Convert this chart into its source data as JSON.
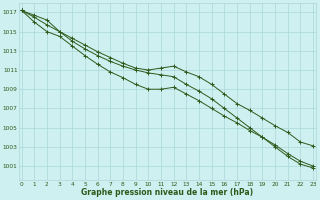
{
  "title": "Graphe pression niveau de la mer (hPa)",
  "background_color": "#cff0f0",
  "grid_color": "#aad8d8",
  "line_color": "#2d5a1b",
  "x_values": [
    0,
    1,
    2,
    3,
    4,
    5,
    6,
    7,
    8,
    9,
    10,
    11,
    12,
    13,
    14,
    15,
    16,
    17,
    18,
    19,
    20,
    21,
    22,
    23
  ],
  "series1": [
    1017.2,
    1016.7,
    1016.2,
    1015.0,
    1014.3,
    1013.6,
    1012.9,
    1012.3,
    1011.7,
    1011.2,
    1011.0,
    1011.2,
    1011.4,
    1010.8,
    1010.3,
    1009.5,
    1008.5,
    1007.5,
    1006.8,
    1006.0,
    1005.2,
    1004.5,
    1003.5,
    1003.1
  ],
  "series2": [
    1017.2,
    1016.5,
    1015.7,
    1015.0,
    1014.0,
    1013.2,
    1012.5,
    1011.9,
    1011.4,
    1011.0,
    1010.7,
    1010.5,
    1010.3,
    1009.5,
    1008.8,
    1008.0,
    1007.0,
    1006.0,
    1005.0,
    1004.0,
    1003.0,
    1002.0,
    1001.2,
    1000.8
  ],
  "series3": [
    1017.2,
    1016.0,
    1015.0,
    1014.5,
    1013.5,
    1012.5,
    1011.6,
    1010.8,
    1010.2,
    1009.5,
    1009.0,
    1009.0,
    1009.2,
    1008.5,
    1007.8,
    1007.0,
    1006.2,
    1005.5,
    1004.7,
    1004.0,
    1003.2,
    1002.3,
    1001.5,
    1001.0
  ],
  "ylim": [
    999.5,
    1018
  ],
  "yticks": [
    1001,
    1003,
    1005,
    1007,
    1009,
    1011,
    1013,
    1015,
    1017
  ],
  "xlim_min": -0.2,
  "xlim_max": 23.2,
  "xticks": [
    0,
    1,
    2,
    3,
    4,
    5,
    6,
    7,
    8,
    9,
    10,
    11,
    12,
    13,
    14,
    15,
    16,
    17,
    18,
    19,
    20,
    21,
    22,
    23
  ],
  "tick_fontsize": 4.2,
  "xlabel_fontsize": 5.5,
  "linewidth": 0.7,
  "markersize": 2.5,
  "markeredgewidth": 0.7
}
